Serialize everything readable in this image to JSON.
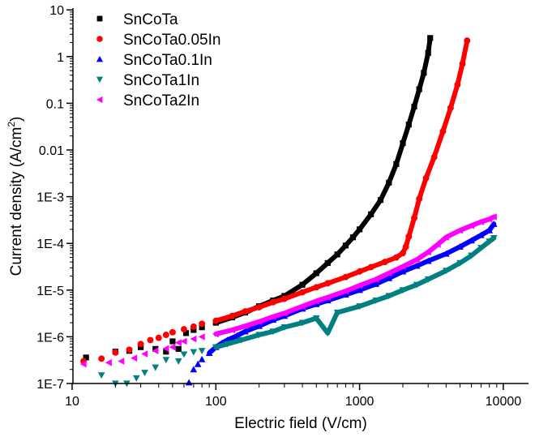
{
  "chart_data": {
    "type": "scatter",
    "title": "",
    "xlabel": "Electric field (V/cm)",
    "ylabel_main": "Current density (A/cm",
    "ylabel_sup": "2",
    "ylabel_close": ")",
    "xscale": "log",
    "yscale": "log",
    "xlim": [
      10,
      15000
    ],
    "ylim": [
      1e-07,
      10
    ],
    "grid": false,
    "legend_position": "top-left",
    "x_ticks": [
      {
        "value": 10,
        "label": "10"
      },
      {
        "value": 100,
        "label": "100"
      },
      {
        "value": 1000,
        "label": "1000"
      },
      {
        "value": 10000,
        "label": "10000"
      }
    ],
    "y_ticks": [
      {
        "value": 1e-07,
        "label": "1E-7"
      },
      {
        "value": 1e-06,
        "label": "1E-6"
      },
      {
        "value": 1e-05,
        "label": "1E-5"
      },
      {
        "value": 0.0001,
        "label": "1E-4"
      },
      {
        "value": 0.001,
        "label": "1E-3"
      },
      {
        "value": 0.01,
        "label": "0.01"
      },
      {
        "value": 0.1,
        "label": "0.1"
      },
      {
        "value": 1,
        "label": "1"
      },
      {
        "value": 10,
        "label": "10"
      }
    ],
    "series": [
      {
        "name": "SnCoTa",
        "marker": "square",
        "color": "#000000",
        "points": [
          [
            12.5,
            3.6e-07
          ],
          [
            20,
            4.8e-07
          ],
          [
            25,
            5e-07
          ],
          [
            30,
            6e-07
          ],
          [
            38,
            5.5e-07
          ],
          [
            45,
            4.8e-07
          ],
          [
            50,
            8e-07
          ],
          [
            55,
            5.5e-07
          ],
          [
            62,
            1.2e-06
          ],
          [
            70,
            1.4e-06
          ],
          [
            80,
            1.6e-06
          ],
          [
            100,
            2e-06
          ],
          [
            130,
            2.6e-06
          ],
          [
            160,
            3.3e-06
          ],
          [
            200,
            4.5e-06
          ],
          [
            250,
            6e-06
          ],
          [
            300,
            7.5e-06
          ],
          [
            400,
            1.3e-05
          ],
          [
            500,
            2.3e-05
          ],
          [
            600,
            3.8e-05
          ],
          [
            700,
            5.8e-05
          ],
          [
            800,
            9e-05
          ],
          [
            900,
            0.000135
          ],
          [
            1000,
            0.0002
          ],
          [
            1200,
            0.00042
          ],
          [
            1400,
            0.00085
          ],
          [
            1600,
            0.002
          ],
          [
            1800,
            0.005
          ],
          [
            2000,
            0.014
          ],
          [
            2200,
            0.035
          ],
          [
            2400,
            0.085
          ],
          [
            2600,
            0.2
          ],
          [
            2800,
            0.45
          ],
          [
            3000,
            1.2
          ],
          [
            3100,
            2.5
          ]
        ]
      },
      {
        "name": "SnCoTa0.05In",
        "marker": "circle",
        "color": "#ff0000",
        "points": [
          [
            12,
            3e-07
          ],
          [
            16,
            3.4e-07
          ],
          [
            20,
            4.6e-07
          ],
          [
            25,
            5.3e-07
          ],
          [
            30,
            7e-07
          ],
          [
            35,
            8.5e-07
          ],
          [
            40,
            9.5e-07
          ],
          [
            45,
            1.1e-06
          ],
          [
            50,
            1.25e-06
          ],
          [
            60,
            1.45e-06
          ],
          [
            70,
            1.65e-06
          ],
          [
            80,
            1.9e-06
          ],
          [
            100,
            2.2e-06
          ],
          [
            130,
            2.8e-06
          ],
          [
            160,
            3.5e-06
          ],
          [
            200,
            4.3e-06
          ],
          [
            250,
            5.5e-06
          ],
          [
            300,
            6.5e-06
          ],
          [
            400,
            9e-06
          ],
          [
            500,
            1.15e-05
          ],
          [
            600,
            1.4e-05
          ],
          [
            800,
            1.9e-05
          ],
          [
            1000,
            2.5e-05
          ],
          [
            1200,
            3.1e-05
          ],
          [
            1500,
            4e-05
          ],
          [
            1800,
            5e-05
          ],
          [
            2000,
            6.2e-05
          ],
          [
            2100,
            8.5e-05
          ],
          [
            2200,
            0.00014
          ],
          [
            2400,
            0.00035
          ],
          [
            2600,
            0.0009
          ],
          [
            2900,
            0.0025
          ],
          [
            3300,
            0.007
          ],
          [
            3800,
            0.025
          ],
          [
            4300,
            0.08
          ],
          [
            4800,
            0.25
          ],
          [
            5200,
            0.7
          ],
          [
            5600,
            2.2
          ]
        ]
      },
      {
        "name": "SnCoTa0.1In",
        "marker": "triangle-up",
        "color": "#0000ff",
        "points": [
          [
            65,
            1.05e-07
          ],
          [
            70,
            2e-07
          ],
          [
            75,
            2.6e-07
          ],
          [
            80,
            3.3e-07
          ],
          [
            90,
            4.5e-07
          ],
          [
            100,
            6e-07
          ],
          [
            110,
            7.3e-07
          ],
          [
            120,
            8.5e-07
          ],
          [
            140,
            1.05e-06
          ],
          [
            160,
            1.3e-06
          ],
          [
            200,
            1.7e-06
          ],
          [
            250,
            2.3e-06
          ],
          [
            300,
            2.8e-06
          ],
          [
            400,
            4e-06
          ],
          [
            500,
            5e-06
          ],
          [
            600,
            6e-06
          ],
          [
            800,
            8e-06
          ],
          [
            1000,
            1e-05
          ],
          [
            1300,
            1.35e-05
          ],
          [
            1600,
            1.8e-05
          ],
          [
            2000,
            2.5e-05
          ],
          [
            2500,
            3.3e-05
          ],
          [
            3000,
            4.2e-05
          ],
          [
            4000,
            6e-05
          ],
          [
            5000,
            8.5e-05
          ],
          [
            6000,
            0.000115
          ],
          [
            7000,
            0.00015
          ],
          [
            8000,
            0.00019
          ],
          [
            8600,
            0.00026
          ]
        ]
      },
      {
        "name": "SnCoTa1In",
        "marker": "triangle-down",
        "color": "#008080",
        "points": [
          [
            16,
            1.5e-07
          ],
          [
            20,
            1e-07
          ],
          [
            24,
            1e-07
          ],
          [
            28,
            1.3e-07
          ],
          [
            32,
            1.7e-07
          ],
          [
            38,
            2.2e-07
          ],
          [
            45,
            3.2e-07
          ],
          [
            55,
            3e-07
          ],
          [
            60,
            4.2e-07
          ],
          [
            70,
            4.7e-07
          ],
          [
            80,
            5e-07
          ],
          [
            100,
            6e-07
          ],
          [
            120,
            7e-07
          ],
          [
            150,
            8.5e-07
          ],
          [
            200,
            1.1e-06
          ],
          [
            250,
            1.3e-06
          ],
          [
            300,
            1.6e-06
          ],
          [
            400,
            2e-06
          ],
          [
            500,
            2.5e-06
          ],
          [
            600,
            1.2e-06
          ],
          [
            700,
            3.3e-06
          ],
          [
            1000,
            4.5e-06
          ],
          [
            1300,
            6e-06
          ],
          [
            1600,
            7.5e-06
          ],
          [
            2000,
            1e-05
          ],
          [
            2500,
            1.3e-05
          ],
          [
            3000,
            1.7e-05
          ],
          [
            4000,
            2.6e-05
          ],
          [
            5000,
            3.8e-05
          ],
          [
            6000,
            5.5e-05
          ],
          [
            7000,
            8e-05
          ],
          [
            8000,
            0.00011
          ],
          [
            8600,
            0.00013
          ]
        ]
      },
      {
        "name": "SnCoTa2In",
        "marker": "triangle-left",
        "color": "#ff00ff",
        "points": [
          [
            12,
            2.6e-07
          ],
          [
            18,
            2.8e-07
          ],
          [
            22,
            3e-07
          ],
          [
            27,
            3.5e-07
          ],
          [
            32,
            4.3e-07
          ],
          [
            38,
            5e-07
          ],
          [
            45,
            5.6e-07
          ],
          [
            50,
            6e-07
          ],
          [
            55,
            7.5e-07
          ],
          [
            60,
            8e-07
          ],
          [
            70,
            9e-07
          ],
          [
            80,
            1e-06
          ],
          [
            100,
            1.15e-06
          ],
          [
            130,
            1.4e-06
          ],
          [
            160,
            1.7e-06
          ],
          [
            200,
            2.1e-06
          ],
          [
            250,
            2.7e-06
          ],
          [
            300,
            3.2e-06
          ],
          [
            400,
            4.5e-06
          ],
          [
            500,
            5.8e-06
          ],
          [
            600,
            7e-06
          ],
          [
            800,
            9.5e-06
          ],
          [
            1000,
            1.25e-05
          ],
          [
            1300,
            1.7e-05
          ],
          [
            1600,
            2.3e-05
          ],
          [
            2000,
            3.2e-05
          ],
          [
            2500,
            4.5e-05
          ],
          [
            3000,
            6.5e-05
          ],
          [
            3500,
            9.5e-05
          ],
          [
            4000,
            0.000135
          ],
          [
            5000,
            0.00019
          ],
          [
            6000,
            0.00024
          ],
          [
            7000,
            0.00029
          ],
          [
            8000,
            0.00033
          ],
          [
            8600,
            0.00037
          ]
        ]
      }
    ]
  }
}
